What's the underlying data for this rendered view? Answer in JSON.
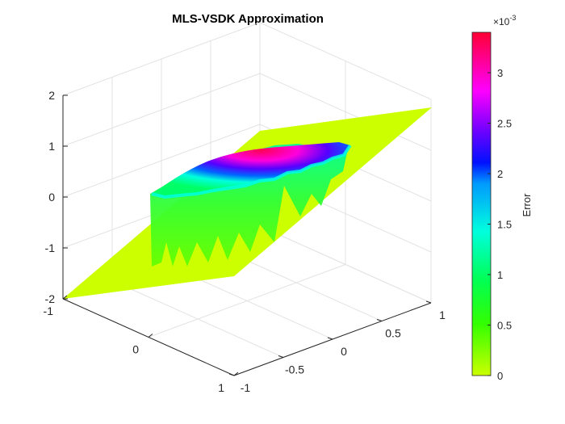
{
  "chart_data": {
    "type": "surface",
    "title": "MLS-VSDK Approximation",
    "xlabel": "",
    "ylabel": "",
    "zlabel": "",
    "xlim": [
      -1,
      1
    ],
    "ylim": [
      -1,
      1
    ],
    "zlim": [
      -2,
      2
    ],
    "x_ticks": [
      "-1",
      "0",
      "1"
    ],
    "y_ticks": [
      "-1",
      "-0.5",
      "0",
      "0.5",
      "1"
    ],
    "z_ticks": [
      "-2",
      "-1",
      "0",
      "1",
      "2"
    ],
    "grid": true,
    "surface": {
      "description_free": true,
      "plane": {
        "z_at_xmin_ymin": -2,
        "z_at_xmax_ymax": 2
      },
      "baseline_error": 0,
      "peak_error": 0.0034
    },
    "colorbar": {
      "label": "Error",
      "exponent_base": "×10",
      "exponent_power": "-3",
      "range": [
        0,
        3.4
      ],
      "ticks": [
        "0",
        "0.5",
        "1",
        "1.5",
        "2",
        "2.5",
        "3"
      ],
      "colormap": [
        "#ccff00",
        "#00ff33",
        "#00ffcc",
        "#0066ff",
        "#6600ff",
        "#ff00ff",
        "#ff0033"
      ]
    }
  }
}
